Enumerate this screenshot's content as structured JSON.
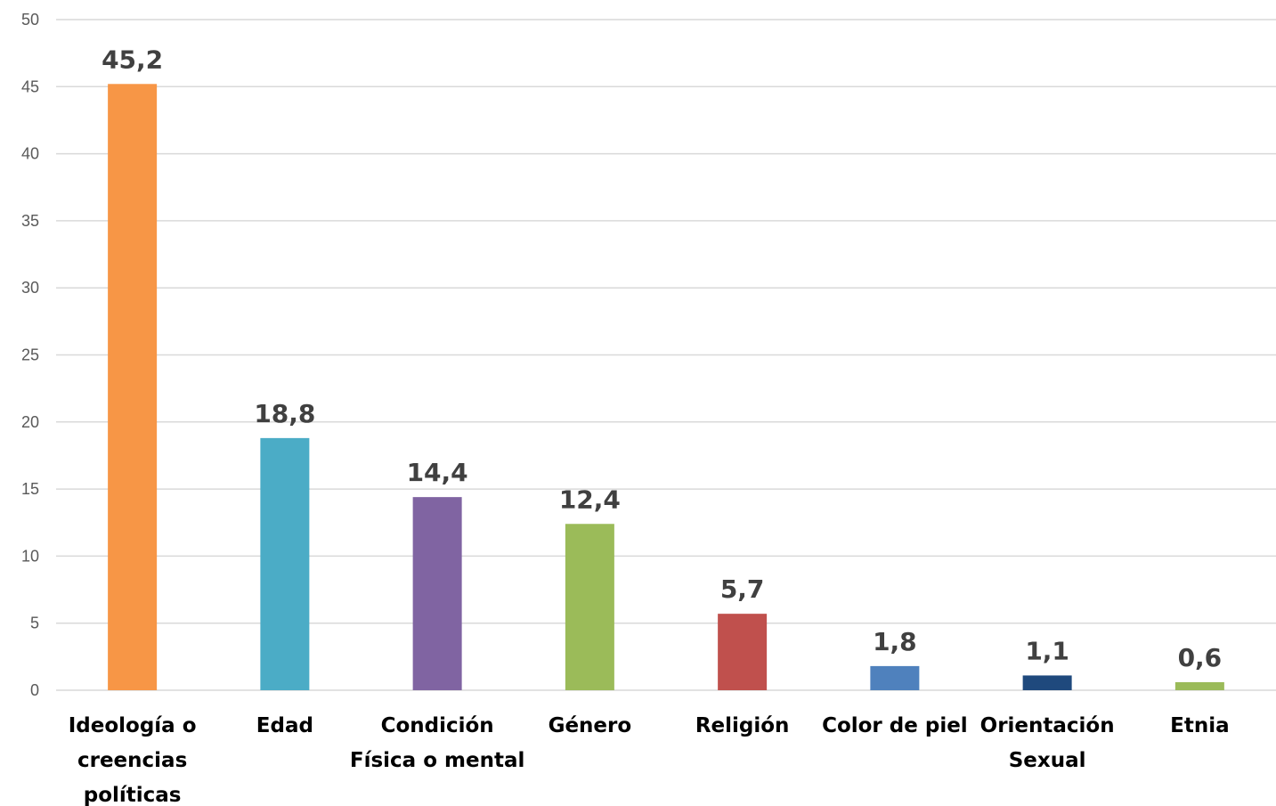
{
  "chart_data": {
    "type": "bar",
    "title": "",
    "xlabel": "",
    "ylabel": "",
    "ylim": [
      0,
      50
    ],
    "yticks": [
      "0",
      "5",
      "10",
      "15",
      "20",
      "25",
      "30",
      "35",
      "40",
      "45",
      "50"
    ],
    "grid": true,
    "legend": "none",
    "categories": [
      [
        "Ideología o",
        "creencias",
        "políticas"
      ],
      [
        "Edad"
      ],
      [
        "Condición",
        "Física o mental"
      ],
      [
        "Género"
      ],
      [
        "Religión"
      ],
      [
        "Color de piel"
      ],
      [
        "Orientación",
        "Sexual"
      ],
      [
        "Etnia"
      ]
    ],
    "values": [
      45.2,
      18.8,
      14.4,
      12.4,
      5.7,
      1.8,
      1.1,
      0.6
    ],
    "value_labels": [
      "45,2",
      "18,8",
      "14,4",
      "12,4",
      "5,7",
      "1,8",
      "1,1",
      "0,6"
    ],
    "colors": [
      "#f79646",
      "#4bacc6",
      "#8064a2",
      "#9bbb59",
      "#c0504d",
      "#4f81bd",
      "#1f497d",
      "#9bbb59"
    ]
  }
}
